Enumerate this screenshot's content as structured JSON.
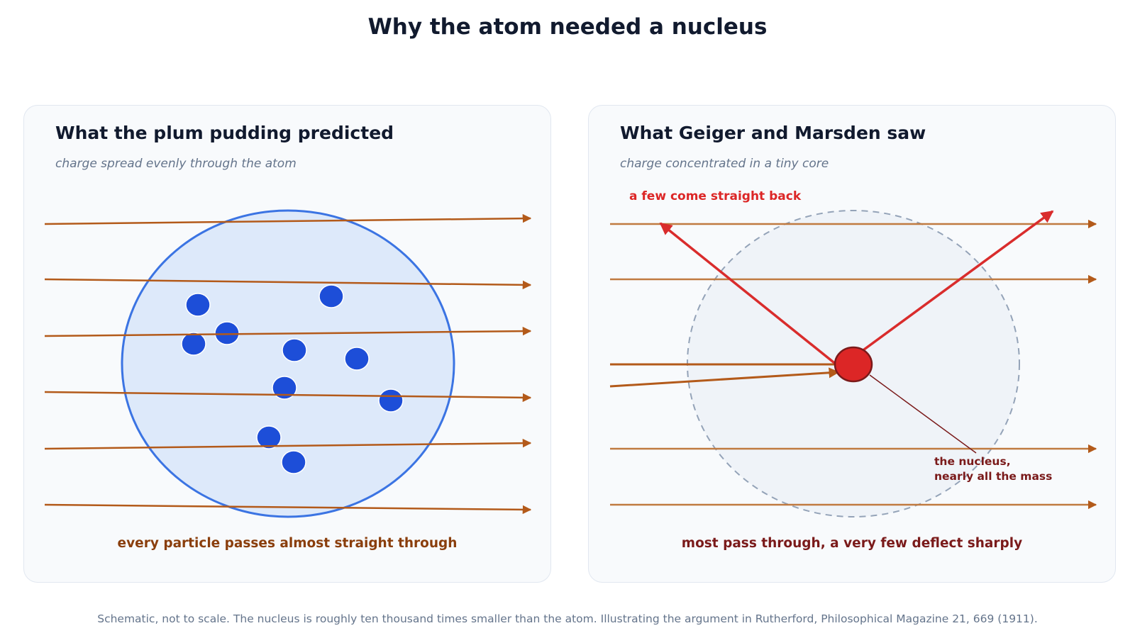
{
  "title": "Why the atom needed a nucleus",
  "left_panel": {
    "title": "What the plum pudding predicted",
    "subtitle": "charge spread evenly through the atom",
    "caption": "every particle passes almost straight through"
  },
  "right_panel": {
    "title": "What Geiger and Marsden saw",
    "subtitle": "charge concentrated in a tiny core",
    "callout_back": "a few come straight back",
    "nucleus_label_line1": "the nucleus,",
    "nucleus_label_line2": "nearly all the mass",
    "caption": "most pass through, a very few deflect sharply"
  },
  "footnote": "Schematic, not to scale. The nucleus is roughly ten thousand times smaller than the atom. Illustrating the argument in Rutherford, Philosophical Magazine 21, 669 (1911).",
  "colors": {
    "alpha_path": "#b35a1a",
    "alpha_path_light": "#c07a40",
    "atom_fill": "#dde9fa",
    "atom_stroke": "#3b74e3",
    "electron": "#1d4ed8",
    "nucleus": "#dc2626",
    "deflected": "#d92c2c"
  }
}
